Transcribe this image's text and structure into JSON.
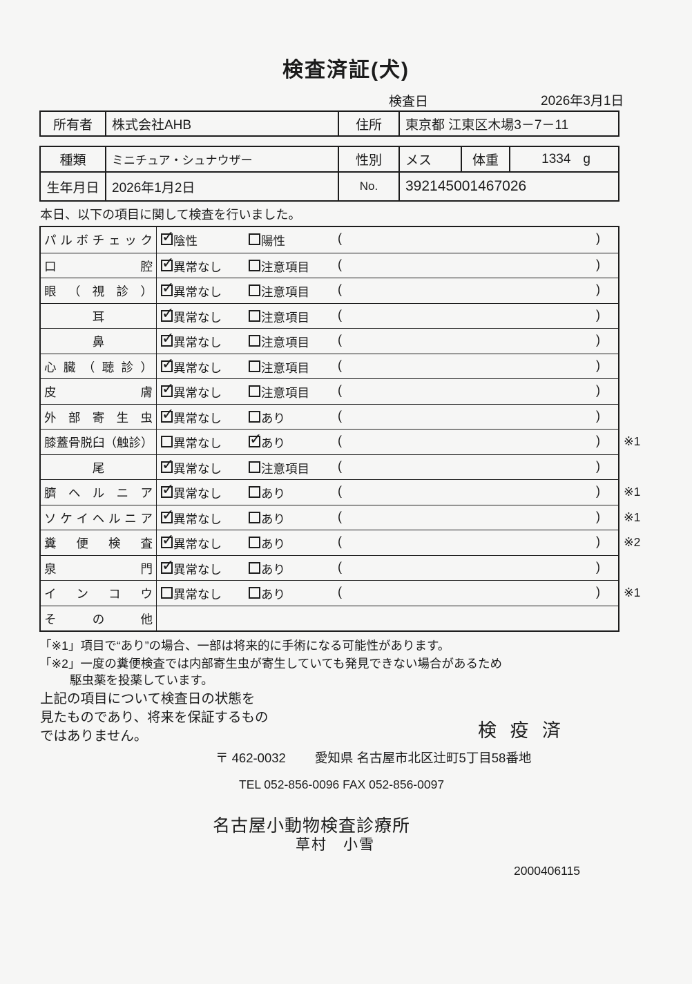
{
  "title": "検査済証(犬)",
  "exam_date": {
    "label": "検査日",
    "value": "2026年3月1日"
  },
  "owner_table": {
    "owner_label": "所有者",
    "owner_value": "株式会社AHB",
    "address_label": "住所",
    "address_value": "東京都 江東区木場3－7－11"
  },
  "animal_table": {
    "breed_label": "種類",
    "breed_value": "ミニチュア・シュナウザー",
    "sex_label": "性別",
    "sex_value": "メス",
    "weight_label": "体重",
    "weight_value": "1334",
    "weight_unit": "g",
    "birth_label": "生年月日",
    "birth_value": "2026年1月2日",
    "no_label": "No.",
    "no_value": "392145001467026"
  },
  "intro": "本日、以下の項目に関して検査を行いました。",
  "checklist": {
    "paren_open": "(",
    "paren_close": ")",
    "rows": [
      {
        "label": "パ ル ボ チ ェ ッ ク",
        "opt1": "陰性",
        "opt1_checked": true,
        "opt2": "陽性",
        "opt2_checked": false,
        "note": ""
      },
      {
        "label": "口 腔",
        "opt1": "異常なし",
        "opt1_checked": true,
        "opt2": "注意項目",
        "opt2_checked": false,
        "note": ""
      },
      {
        "label": "眼 （ 視 診 ）",
        "opt1": "異常なし",
        "opt1_checked": true,
        "opt2": "注意項目",
        "opt2_checked": false,
        "note": ""
      },
      {
        "label": "耳",
        "align": "center",
        "opt1": "異常なし",
        "opt1_checked": true,
        "opt2": "注意項目",
        "opt2_checked": false,
        "note": ""
      },
      {
        "label": "鼻",
        "align": "center",
        "opt1": "異常なし",
        "opt1_checked": true,
        "opt2": "注意項目",
        "opt2_checked": false,
        "note": ""
      },
      {
        "label": "心 臓 （ 聴 診 ）",
        "opt1": "異常なし",
        "opt1_checked": true,
        "opt2": "注意項目",
        "opt2_checked": false,
        "note": ""
      },
      {
        "label": "皮 膚",
        "opt1": "異常なし",
        "opt1_checked": true,
        "opt2": "注意項目",
        "opt2_checked": false,
        "note": ""
      },
      {
        "label": "外 部 寄 生 虫",
        "opt1": "異常なし",
        "opt1_checked": true,
        "opt2": "あり",
        "opt2_checked": false,
        "note": ""
      },
      {
        "label": "膝蓋骨脱臼（触診）",
        "opt1": "異常なし",
        "opt1_checked": false,
        "opt2": "あり",
        "opt2_checked": true,
        "note": "※1"
      },
      {
        "label": "尾",
        "align": "center",
        "opt1": "異常なし",
        "opt1_checked": true,
        "opt2": "注意項目",
        "opt2_checked": false,
        "note": ""
      },
      {
        "label": "臍 ヘ ル ニ ア",
        "opt1": "異常なし",
        "opt1_checked": true,
        "opt2": "あり",
        "opt2_checked": false,
        "note": "※1"
      },
      {
        "label": "ソ ケ イ ヘ ル ニ ア",
        "opt1": "異常なし",
        "opt1_checked": true,
        "opt2": "あり",
        "opt2_checked": false,
        "note": "※1"
      },
      {
        "label": "糞 便 検 査",
        "opt1": "異常なし",
        "opt1_checked": true,
        "opt2": "あり",
        "opt2_checked": false,
        "note": "※2"
      },
      {
        "label": "泉 門",
        "opt1": "異常なし",
        "opt1_checked": true,
        "opt2": "あり",
        "opt2_checked": false,
        "note": ""
      },
      {
        "label": "イ ン コ ウ",
        "opt1": "異常なし",
        "opt1_checked": false,
        "opt2": "あり",
        "opt2_checked": false,
        "note": "※1"
      },
      {
        "label": "そ の 他",
        "options": false
      }
    ]
  },
  "footnotes": {
    "note1": "「※1」項目で“あり”の場合、一部は将来的に手術になる可能性があります。",
    "note2_line1": "「※2」一度の糞便検査では内部寄生虫が寄生していても発見できない場合があるため",
    "note2_line2": "駆虫薬を投薬しています。"
  },
  "disclaimer": {
    "line1": "上記の項目について検査日の状態を",
    "line2": "見たものであり、将来を保証するもの",
    "line3": "ではありません。"
  },
  "clinic": {
    "stamp": "検 疫 済",
    "postal_mark": "〒 462-0032",
    "address": "愛知県 名古屋市北区辻町5丁目58番地",
    "tel_fax": "TEL 052-856-0096   FAX 052-856-0097",
    "name": "名古屋小動物検査診療所",
    "vet_name": "草村　小雪",
    "serial": "2000406115"
  }
}
